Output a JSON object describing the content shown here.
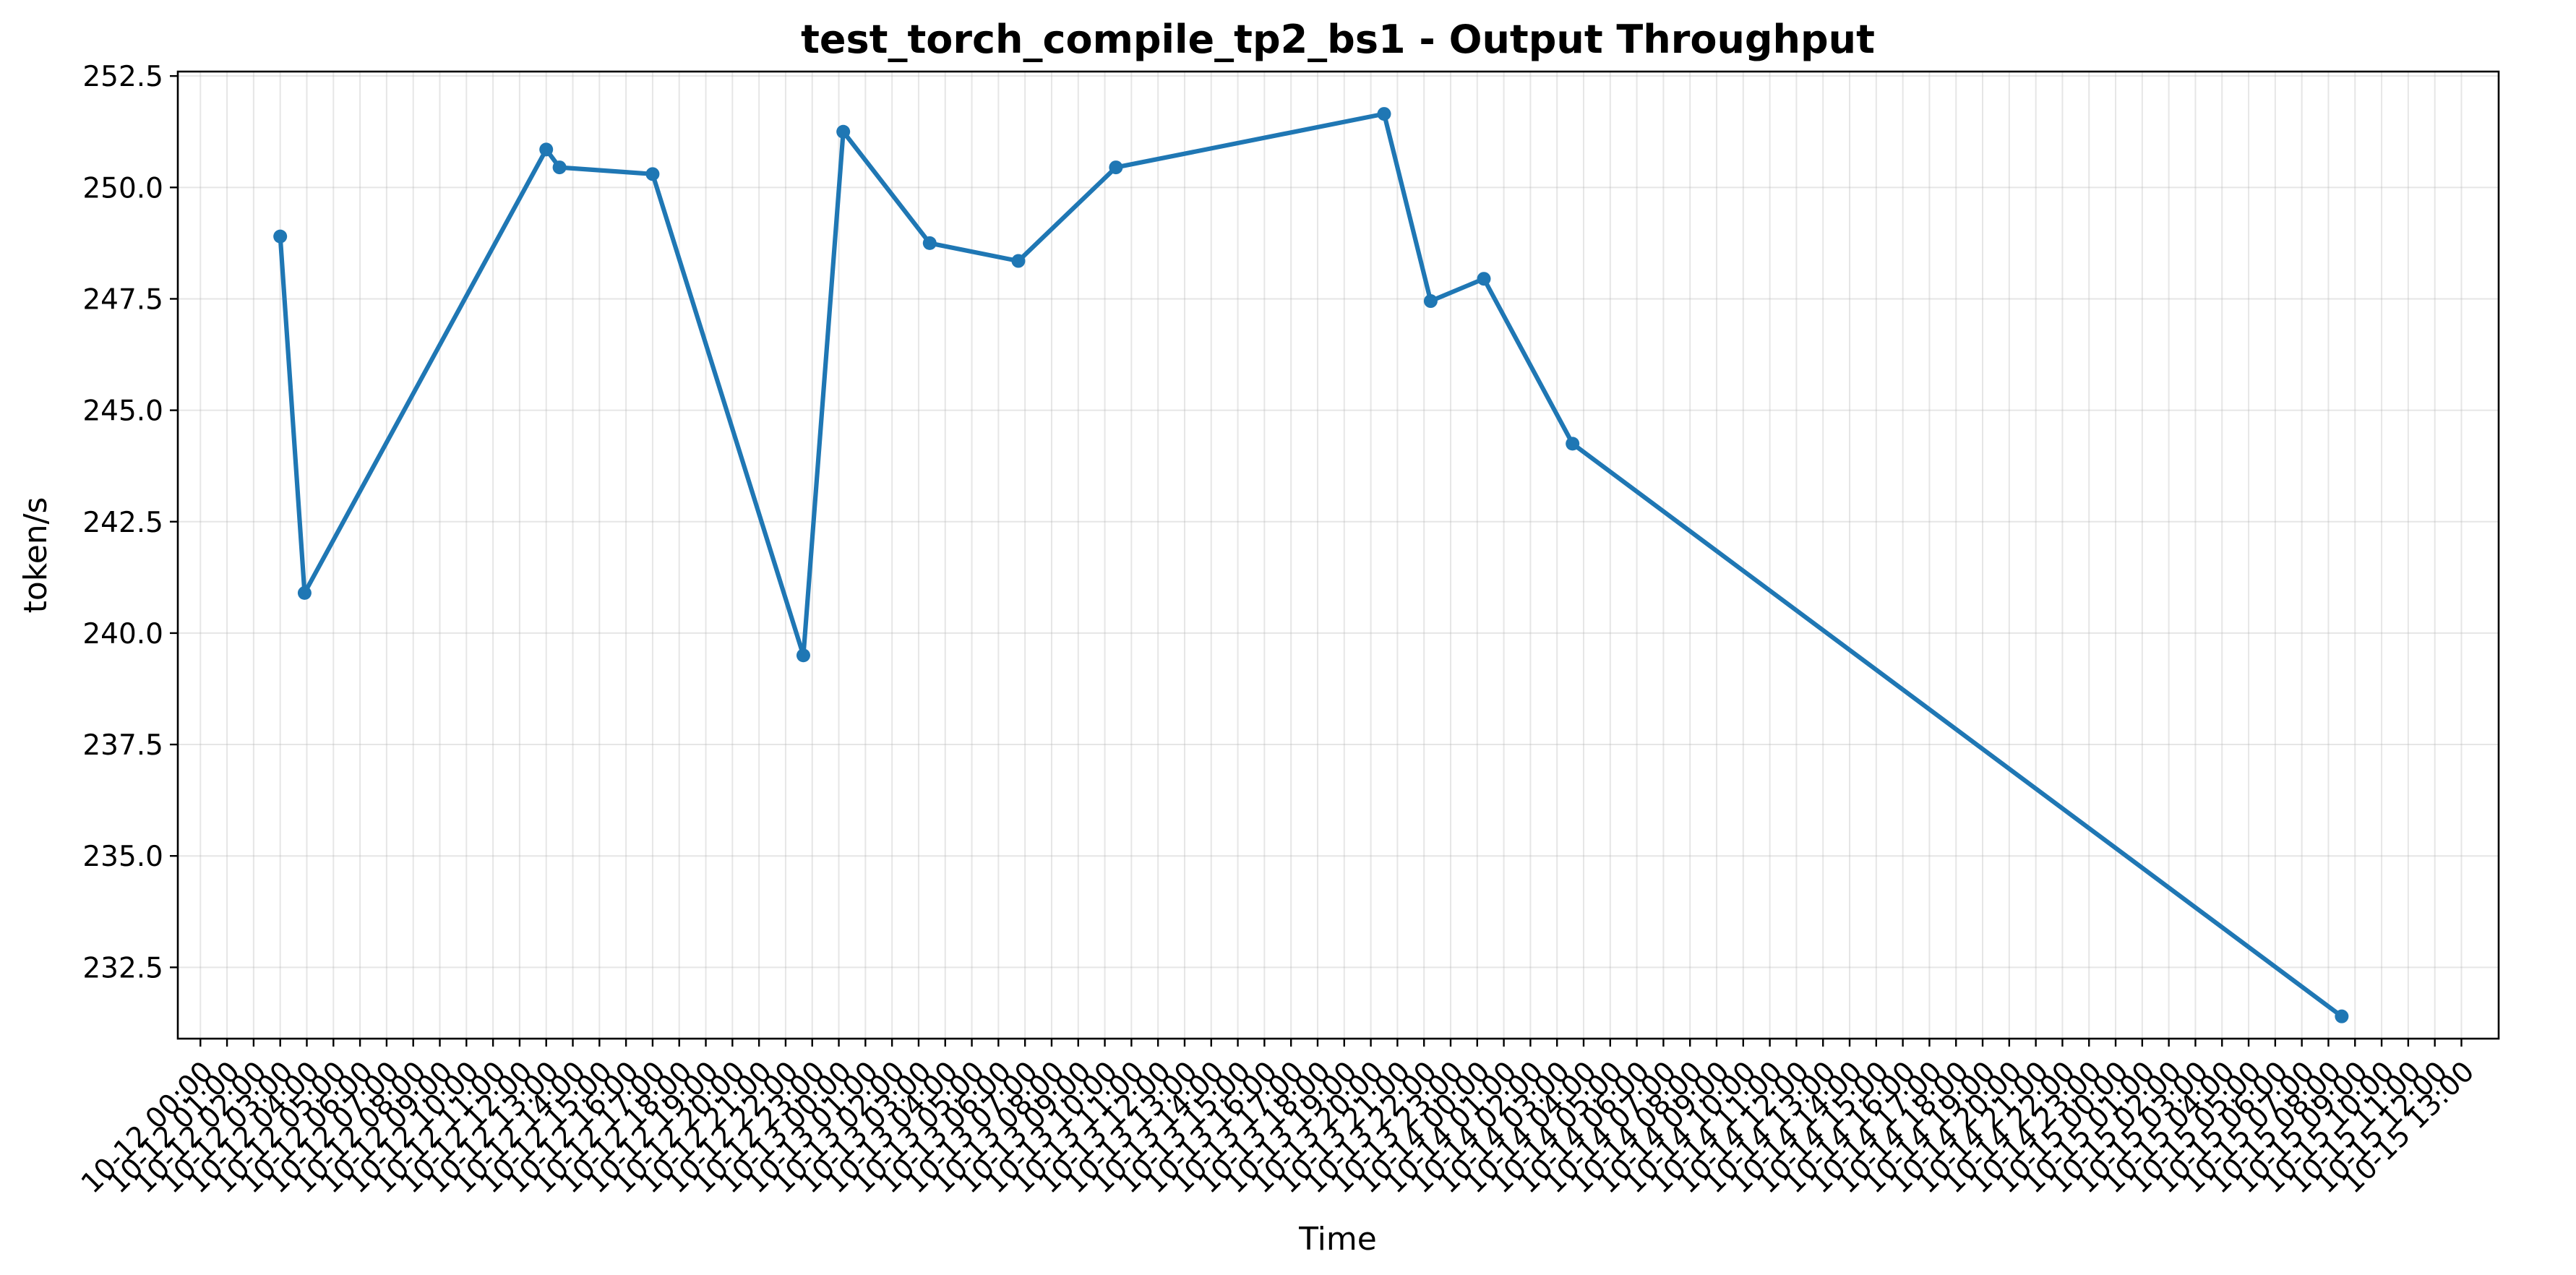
{
  "chart_data": {
    "type": "line",
    "title": "test_torch_compile_tp2_bs1 - Output Throughput",
    "xlabel": "Time",
    "ylabel": "token/s",
    "ylim": [
      230.9,
      252.6
    ],
    "xlim_hours": [
      -0.85,
      86.4
    ],
    "grid": true,
    "legend": "none",
    "colors": {
      "series": "#1f77b4"
    },
    "yticks": [
      232.5,
      235.0,
      237.5,
      240.0,
      242.5,
      245.0,
      247.5,
      250.0,
      252.5
    ],
    "ytick_labels": [
      "232.5",
      "235.0",
      "237.5",
      "240.0",
      "242.5",
      "245.0",
      "247.5",
      "250.0",
      "252.5"
    ],
    "xtick_labels": [
      "10-12 00:00",
      "10-12 01:00",
      "10-12 02:00",
      "10-12 03:00",
      "10-12 04:00",
      "10-12 05:00",
      "10-12 06:00",
      "10-12 07:00",
      "10-12 08:00",
      "10-12 09:00",
      "10-12 10:00",
      "10-12 11:00",
      "10-12 12:00",
      "10-12 13:00",
      "10-12 14:00",
      "10-12 15:00",
      "10-12 16:00",
      "10-12 17:00",
      "10-12 18:00",
      "10-12 19:00",
      "10-12 20:00",
      "10-12 21:00",
      "10-12 22:00",
      "10-12 23:00",
      "10-13 00:00",
      "10-13 01:00",
      "10-13 02:00",
      "10-13 03:00",
      "10-13 04:00",
      "10-13 05:00",
      "10-13 06:00",
      "10-13 07:00",
      "10-13 08:00",
      "10-13 09:00",
      "10-13 10:00",
      "10-13 11:00",
      "10-13 12:00",
      "10-13 13:00",
      "10-13 14:00",
      "10-13 15:00",
      "10-13 16:00",
      "10-13 17:00",
      "10-13 18:00",
      "10-13 19:00",
      "10-13 20:00",
      "10-13 21:00",
      "10-13 22:00",
      "10-13 23:00",
      "10-14 00:00",
      "10-14 01:00",
      "10-14 02:00",
      "10-14 03:00",
      "10-14 04:00",
      "10-14 05:00",
      "10-14 06:00",
      "10-14 07:00",
      "10-14 08:00",
      "10-14 09:00",
      "10-14 10:00",
      "10-14 11:00",
      "10-14 12:00",
      "10-14 13:00",
      "10-14 14:00",
      "10-14 15:00",
      "10-14 16:00",
      "10-14 17:00",
      "10-14 18:00",
      "10-14 19:00",
      "10-14 20:00",
      "10-14 21:00",
      "10-14 22:00",
      "10-14 23:00",
      "10-15 00:00",
      "10-15 01:00",
      "10-15 02:00",
      "10-15 03:00",
      "10-15 04:00",
      "10-15 05:00",
      "10-15 06:00",
      "10-15 07:00",
      "10-15 08:00",
      "10-15 09:00",
      "10-15 10:00",
      "10-15 11:00",
      "10-15 12:00",
      "10-15 13:00"
    ],
    "series": [
      {
        "x": [
          "10-12 03:00",
          "10-12 03:55",
          "10-12 13:00",
          "10-12 13:30",
          "10-12 17:00",
          "10-12 22:40",
          "10-13 00:10",
          "10-13 03:25",
          "10-13 06:45",
          "10-13 10:25",
          "10-13 20:30",
          "10-13 22:15",
          "10-14 00:15",
          "10-14 03:35",
          "10-15 08:30"
        ],
        "values": [
          248.9,
          240.9,
          250.85,
          250.45,
          250.3,
          239.5,
          251.25,
          248.75,
          248.35,
          250.45,
          251.65,
          247.45,
          247.95,
          244.25,
          231.4
        ]
      }
    ]
  }
}
